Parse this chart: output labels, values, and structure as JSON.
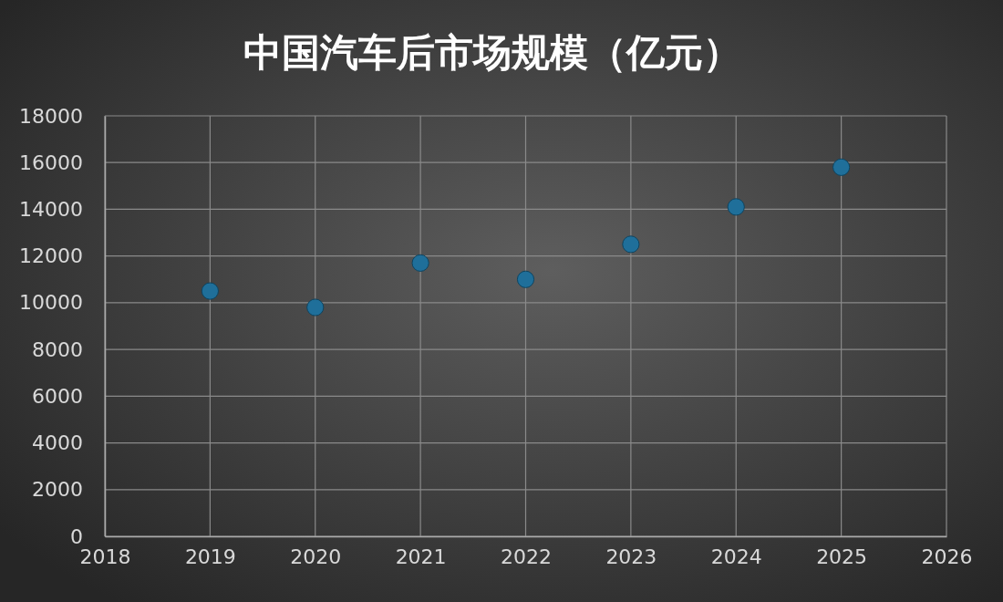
{
  "chart_data": {
    "type": "scatter",
    "title": "中国汽车后市场规模（亿元）",
    "x": [
      2019,
      2020,
      2021,
      2022,
      2023,
      2024,
      2025
    ],
    "series": [
      {
        "color": "#1f6f9a",
        "values": [
          10500,
          9800,
          11700,
          11000,
          12500,
          14100,
          15800
        ]
      }
    ],
    "xlim": [
      2018,
      2026
    ],
    "xticks": [
      2018,
      2019,
      2020,
      2021,
      2022,
      2023,
      2024,
      2025,
      2026
    ],
    "ylim": [
      0,
      18000
    ],
    "yticks": [
      0,
      2000,
      4000,
      6000,
      8000,
      10000,
      12000,
      14000,
      16000,
      18000
    ],
    "grid": true,
    "marker": "circle"
  }
}
